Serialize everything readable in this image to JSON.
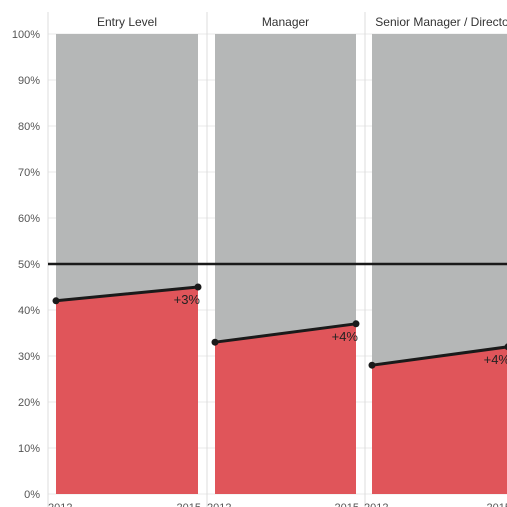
{
  "chart_data": {
    "type": "area",
    "title": "",
    "xlabel": "",
    "ylabel": "",
    "ylim": [
      0,
      100
    ],
    "y_ticks": [
      "0%",
      "10%",
      "20%",
      "30%",
      "40%",
      "50%",
      "60%",
      "70%",
      "80%",
      "90%",
      "100%"
    ],
    "x": [
      2012,
      2015
    ],
    "x_tick_labels": [
      "2012",
      "2015"
    ],
    "reference_line": 50,
    "colors": {
      "share": "#e0555a",
      "remainder": "#b5b7b7",
      "line": "#1a1a1a"
    },
    "panels": [
      {
        "name": "Entry Level",
        "values": [
          42,
          45
        ],
        "change_label": "+3%"
      },
      {
        "name": "Manager",
        "values": [
          33,
          37
        ],
        "change_label": "+4%"
      },
      {
        "name": "Senior Manager / Director",
        "values": [
          28,
          32
        ],
        "change_label": "+4%"
      }
    ]
  }
}
